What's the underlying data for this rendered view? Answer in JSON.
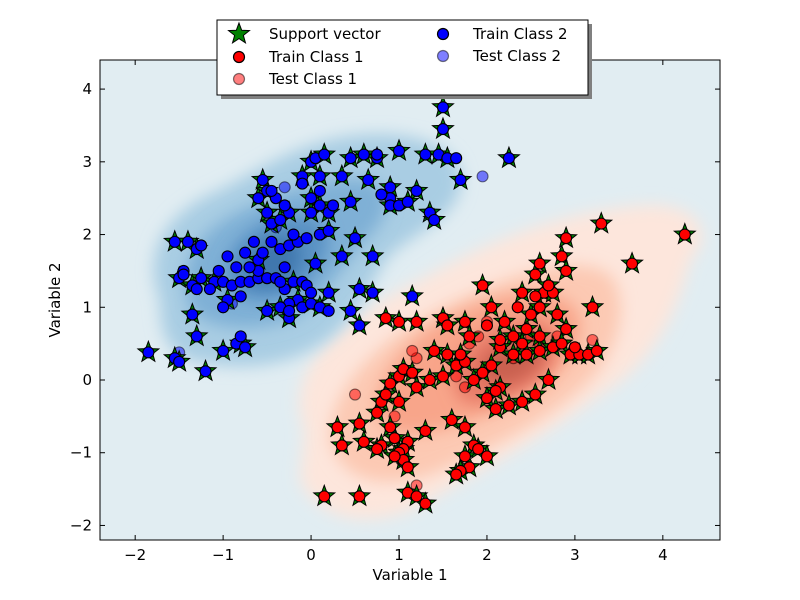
{
  "chart_data": {
    "type": "scatter",
    "xlabel": "Variable 1",
    "ylabel": "Variable 2",
    "xlim": [
      -2.4,
      4.65
    ],
    "ylim": [
      -2.2,
      4.4
    ],
    "xticks": [
      -2,
      -1,
      0,
      1,
      2,
      3,
      4
    ],
    "yticks": [
      -2,
      -1,
      0,
      1,
      2,
      3,
      4
    ],
    "xtick_labels": [
      "−2",
      "−1",
      "0",
      "1",
      "2",
      "3",
      "4"
    ],
    "ytick_labels": [
      "−2",
      "−1",
      "0",
      "1",
      "2",
      "3",
      "4"
    ],
    "grid": false,
    "legend": {
      "placement": "top-center",
      "columns": 2,
      "entries": [
        {
          "label": "Support vector",
          "marker": "star",
          "color": "#008000"
        },
        {
          "label": "Train Class 1",
          "marker": "circle",
          "color": "#ff0000"
        },
        {
          "label": "Test Class 1",
          "marker": "circle",
          "color": "#f07070"
        },
        {
          "label": "Train Class 2",
          "marker": "circle",
          "color": "#0000ff"
        },
        {
          "label": "Test Class 2",
          "marker": "circle",
          "color": "#7070e8"
        }
      ]
    },
    "colors": {
      "background": "#e1edf2",
      "train_class_1": "#ff0000",
      "test_class_1": "#f07070",
      "train_class_2": "#0000ff",
      "test_class_2": "#7070e8",
      "support_vector": "#008000",
      "density_class_1": [
        "#fde6dc",
        "#fcc9b3",
        "#f8a58a",
        "#e87d69",
        "#c9604f"
      ],
      "density_class_2": [
        "#a9cde3",
        "#7fb0d6",
        "#5a92c4",
        "#3f77ad"
      ]
    },
    "train_class_1": [
      [
        0.85,
        0.85
      ],
      [
        1.0,
        0.8
      ],
      [
        1.2,
        0.8
      ],
      [
        1.5,
        0.85
      ],
      [
        1.75,
        0.8
      ],
      [
        2.0,
        0.75
      ],
      [
        2.05,
        1.0
      ],
      [
        2.2,
        0.8
      ],
      [
        2.3,
        0.6
      ],
      [
        2.45,
        0.7
      ],
      [
        2.5,
        0.9
      ],
      [
        2.6,
        1.0
      ],
      [
        2.65,
        1.2
      ],
      [
        2.55,
        1.15
      ],
      [
        2.4,
        1.2
      ],
      [
        2.75,
        1.2
      ],
      [
        2.8,
        0.9
      ],
      [
        2.9,
        0.7
      ],
      [
        2.85,
        1.7
      ],
      [
        2.9,
        1.5
      ],
      [
        3.2,
        1.0
      ],
      [
        1.95,
        1.3
      ],
      [
        2.35,
        1.0
      ],
      [
        2.6,
        0.6
      ],
      [
        2.15,
        0.45
      ],
      [
        2.3,
        0.35
      ],
      [
        2.45,
        0.35
      ],
      [
        2.6,
        0.4
      ],
      [
        2.75,
        0.45
      ],
      [
        2.85,
        0.5
      ],
      [
        2.95,
        0.35
      ],
      [
        3.05,
        0.35
      ],
      [
        3.15,
        0.35
      ],
      [
        3.25,
        0.4
      ],
      [
        3.0,
        0.45
      ],
      [
        0.3,
        -0.65
      ],
      [
        0.35,
        -0.9
      ],
      [
        0.55,
        -0.6
      ],
      [
        0.6,
        -0.85
      ],
      [
        0.75,
        -0.45
      ],
      [
        0.8,
        -0.3
      ],
      [
        0.85,
        -0.2
      ],
      [
        0.9,
        -0.05
      ],
      [
        1.0,
        0.05
      ],
      [
        1.05,
        0.15
      ],
      [
        1.15,
        0.1
      ],
      [
        1.2,
        -0.1
      ],
      [
        1.35,
        0.0
      ],
      [
        1.5,
        0.05
      ],
      [
        1.65,
        0.2
      ],
      [
        1.75,
        0.25
      ],
      [
        1.85,
        0.0
      ],
      [
        1.95,
        0.1
      ],
      [
        2.05,
        0.2
      ],
      [
        2.15,
        -0.1
      ],
      [
        2.25,
        -0.35
      ],
      [
        2.4,
        -0.3
      ],
      [
        2.55,
        -0.2
      ],
      [
        2.7,
        0.0
      ],
      [
        1.6,
        -0.55
      ],
      [
        1.75,
        -0.65
      ],
      [
        1.85,
        -0.9
      ],
      [
        1.9,
        -0.95
      ],
      [
        2.0,
        -1.05
      ],
      [
        1.75,
        -1.05
      ],
      [
        1.8,
        -1.2
      ],
      [
        1.7,
        -1.25
      ],
      [
        1.65,
        -1.3
      ],
      [
        1.3,
        -0.7
      ],
      [
        1.1,
        -0.85
      ],
      [
        1.05,
        -0.95
      ],
      [
        0.95,
        -0.8
      ],
      [
        0.9,
        -0.65
      ],
      [
        0.8,
        -0.9
      ],
      [
        0.75,
        -0.95
      ],
      [
        1.0,
        -1.0
      ],
      [
        1.05,
        -1.1
      ],
      [
        1.1,
        -1.2
      ],
      [
        0.95,
        -1.05
      ],
      [
        0.15,
        -1.6
      ],
      [
        0.55,
        -1.6
      ],
      [
        1.1,
        -1.55
      ],
      [
        1.2,
        -1.6
      ],
      [
        1.3,
        -1.7
      ],
      [
        2.6,
        1.6
      ],
      [
        2.7,
        1.3
      ],
      [
        2.55,
        1.45
      ],
      [
        3.65,
        1.6
      ],
      [
        3.3,
        2.15
      ],
      [
        4.25,
        2.0
      ],
      [
        2.0,
        -0.25
      ],
      [
        2.1,
        -0.4
      ],
      [
        2.15,
        0.55
      ],
      [
        2.4,
        0.5
      ],
      [
        1.4,
        0.4
      ],
      [
        1.55,
        0.35
      ],
      [
        1.7,
        0.35
      ],
      [
        1.55,
        0.75
      ],
      [
        1.8,
        0.6
      ],
      [
        2.1,
        -0.15
      ],
      [
        1.0,
        -0.3
      ],
      [
        2.9,
        1.95
      ]
    ],
    "test_class_1": [
      [
        0.5,
        -0.2
      ],
      [
        1.2,
        0.3
      ],
      [
        1.15,
        0.4
      ],
      [
        1.8,
        0.5
      ],
      [
        2.0,
        0.8
      ],
      [
        1.9,
        0.6
      ],
      [
        2.5,
        0.6
      ],
      [
        2.6,
        0.5
      ],
      [
        2.8,
        0.6
      ],
      [
        3.2,
        0.55
      ],
      [
        0.95,
        -0.5
      ],
      [
        1.2,
        -1.45
      ],
      [
        1.65,
        0.05
      ],
      [
        1.75,
        -0.1
      ],
      [
        2.3,
        0.3
      ]
    ],
    "train_class_2": [
      [
        -1.85,
        0.38
      ],
      [
        -1.55,
        0.3
      ],
      [
        -1.5,
        0.25
      ],
      [
        -1.2,
        0.12
      ],
      [
        -1.3,
        0.6
      ],
      [
        -1.35,
        0.9
      ],
      [
        -1.5,
        1.4
      ],
      [
        -1.45,
        1.5
      ],
      [
        -1.35,
        1.3
      ],
      [
        -1.25,
        1.4
      ],
      [
        -1.3,
        1.8
      ],
      [
        -1.4,
        1.9
      ],
      [
        -1.55,
        1.9
      ],
      [
        -1.25,
        1.85
      ],
      [
        -1.1,
        1.35
      ],
      [
        -1.0,
        1.35
      ],
      [
        -0.95,
        1.1
      ],
      [
        -0.9,
        1.3
      ],
      [
        -0.8,
        1.35
      ],
      [
        -0.7,
        1.35
      ],
      [
        -0.6,
        1.4
      ],
      [
        -0.5,
        1.4
      ],
      [
        -0.4,
        1.4
      ],
      [
        -0.3,
        1.25
      ],
      [
        -0.2,
        1.35
      ],
      [
        -0.1,
        1.35
      ],
      [
        0.05,
        1.6
      ],
      [
        -0.15,
        1.1
      ],
      [
        -0.25,
        1.05
      ],
      [
        -0.35,
        1.0
      ],
      [
        -0.5,
        0.95
      ],
      [
        -0.25,
        0.85
      ],
      [
        -0.1,
        1.0
      ],
      [
        0.0,
        1.05
      ],
      [
        0.1,
        1.0
      ],
      [
        0.2,
        1.2
      ],
      [
        -1.0,
        0.4
      ],
      [
        -0.85,
        0.5
      ],
      [
        -0.75,
        0.45
      ],
      [
        -0.8,
        0.6
      ],
      [
        -0.6,
        1.65
      ],
      [
        -0.55,
        1.75
      ],
      [
        -0.65,
        1.9
      ],
      [
        -0.45,
        1.9
      ],
      [
        -0.35,
        1.8
      ],
      [
        -0.25,
        1.85
      ],
      [
        -0.15,
        1.9
      ],
      [
        -0.05,
        1.95
      ],
      [
        0.1,
        2.0
      ],
      [
        -0.45,
        2.15
      ],
      [
        -0.35,
        2.2
      ],
      [
        -0.25,
        2.3
      ],
      [
        -0.5,
        2.3
      ],
      [
        -0.6,
        2.5
      ],
      [
        -0.5,
        2.6
      ],
      [
        -0.4,
        2.5
      ],
      [
        -0.3,
        2.4
      ],
      [
        -0.2,
        2.0
      ],
      [
        0.0,
        2.3
      ],
      [
        0.1,
        2.4
      ],
      [
        0.2,
        2.3
      ],
      [
        0.25,
        2.4
      ],
      [
        0.0,
        2.5
      ],
      [
        0.1,
        2.6
      ],
      [
        -0.6,
        1.5
      ],
      [
        -0.7,
        1.55
      ],
      [
        -0.85,
        1.55
      ],
      [
        -0.95,
        1.7
      ],
      [
        -0.75,
        1.75
      ],
      [
        -0.3,
        1.55
      ],
      [
        0.2,
        2.05
      ],
      [
        0.35,
        1.7
      ],
      [
        0.5,
        1.95
      ],
      [
        0.7,
        1.7
      ],
      [
        -0.1,
        2.8
      ],
      [
        0.0,
        3.0
      ],
      [
        0.05,
        3.05
      ],
      [
        0.15,
        3.1
      ],
      [
        0.1,
        2.8
      ],
      [
        -0.55,
        2.75
      ],
      [
        -0.45,
        2.6
      ],
      [
        0.45,
        3.05
      ],
      [
        0.6,
        3.1
      ],
      [
        0.75,
        3.05
      ],
      [
        0.75,
        3.1
      ],
      [
        0.65,
        2.75
      ],
      [
        0.9,
        2.65
      ],
      [
        1.0,
        3.15
      ],
      [
        1.3,
        3.1
      ],
      [
        1.45,
        3.1
      ],
      [
        1.55,
        3.05
      ],
      [
        1.65,
        3.05
      ],
      [
        1.7,
        2.75
      ],
      [
        1.2,
        2.6
      ],
      [
        0.9,
        2.5
      ],
      [
        0.9,
        2.4
      ],
      [
        1.0,
        2.4
      ],
      [
        1.1,
        2.45
      ],
      [
        1.35,
        2.3
      ],
      [
        1.4,
        2.2
      ],
      [
        0.45,
        2.45
      ],
      [
        0.35,
        2.8
      ],
      [
        0.55,
        0.75
      ],
      [
        0.55,
        1.25
      ],
      [
        0.7,
        1.2
      ],
      [
        0.45,
        0.95
      ],
      [
        0.2,
        0.95
      ],
      [
        -0.25,
        0.95
      ],
      [
        -1.3,
        1.25
      ],
      [
        -1.15,
        1.25
      ],
      [
        -1.05,
        1.5
      ],
      [
        -1.45,
        1.45
      ],
      [
        1.15,
        1.15
      ],
      [
        1.5,
        3.75
      ],
      [
        1.5,
        3.45
      ],
      [
        2.25,
        3.05
      ],
      [
        0.8,
        2.55
      ],
      [
        -0.1,
        2.7
      ],
      [
        -0.05,
        1.3
      ],
      [
        -0.35,
        1.35
      ],
      [
        -1.0,
        1.0
      ],
      [
        -0.8,
        1.15
      ],
      [
        0.0,
        1.2
      ]
    ],
    "test_class_2": [
      [
        -1.5,
        0.38
      ],
      [
        -0.3,
        2.65
      ],
      [
        1.95,
        2.8
      ],
      [
        -0.4,
        2.1
      ],
      [
        -0.9,
        1.05
      ]
    ],
    "support_vectors": [
      [
        -1.85,
        0.38
      ],
      [
        -1.55,
        0.3
      ],
      [
        -1.5,
        0.25
      ],
      [
        -1.2,
        0.12
      ],
      [
        -1.0,
        0.4
      ],
      [
        -0.8,
        0.5
      ],
      [
        -0.75,
        0.45
      ],
      [
        -1.3,
        0.6
      ],
      [
        -1.35,
        0.9
      ],
      [
        -1.55,
        1.9
      ],
      [
        -1.4,
        1.9
      ],
      [
        -1.5,
        1.4
      ],
      [
        -1.35,
        1.3
      ],
      [
        -1.25,
        1.4
      ],
      [
        -1.3,
        1.8
      ],
      [
        -1.1,
        1.35
      ],
      [
        -0.95,
        1.1
      ],
      [
        -0.6,
        1.65
      ],
      [
        -0.6,
        2.5
      ],
      [
        -0.5,
        2.6
      ],
      [
        -0.55,
        2.75
      ],
      [
        -0.5,
        2.3
      ],
      [
        -0.45,
        2.15
      ],
      [
        -0.35,
        2.2
      ],
      [
        -0.25,
        2.3
      ],
      [
        -0.1,
        2.8
      ],
      [
        0.0,
        3.0
      ],
      [
        0.1,
        2.8
      ],
      [
        0.15,
        3.1
      ],
      [
        0.45,
        3.05
      ],
      [
        0.6,
        3.1
      ],
      [
        0.75,
        3.05
      ],
      [
        0.65,
        2.75
      ],
      [
        1.0,
        3.15
      ],
      [
        1.3,
        3.1
      ],
      [
        1.45,
        3.1
      ],
      [
        1.55,
        3.05
      ],
      [
        1.7,
        2.75
      ],
      [
        0.9,
        2.65
      ],
      [
        0.9,
        2.4
      ],
      [
        1.1,
        2.45
      ],
      [
        1.2,
        2.6
      ],
      [
        1.35,
        2.3
      ],
      [
        1.4,
        2.2
      ],
      [
        0.45,
        2.45
      ],
      [
        0.35,
        2.8
      ],
      [
        0.5,
        1.95
      ],
      [
        0.7,
        1.7
      ],
      [
        0.35,
        1.7
      ],
      [
        0.55,
        1.25
      ],
      [
        0.7,
        1.2
      ],
      [
        0.55,
        0.75
      ],
      [
        0.45,
        0.95
      ],
      [
        1.15,
        1.15
      ],
      [
        1.5,
        3.75
      ],
      [
        1.5,
        3.45
      ],
      [
        2.25,
        3.05
      ],
      [
        -0.5,
        0.95
      ],
      [
        -0.35,
        1.0
      ],
      [
        -0.25,
        0.85
      ],
      [
        -0.15,
        1.1
      ],
      [
        0.2,
        1.2
      ],
      [
        0.0,
        1.05
      ],
      [
        0.1,
        1.0
      ],
      [
        0.05,
        1.6
      ],
      [
        -0.2,
        1.35
      ],
      [
        0.2,
        2.05
      ],
      [
        0.0,
        2.3
      ],
      [
        0.1,
        2.4
      ],
      [
        0.2,
        2.3
      ],
      [
        0.0,
        2.5
      ],
      [
        0.85,
        0.85
      ],
      [
        1.0,
        0.8
      ],
      [
        1.2,
        0.8
      ],
      [
        1.5,
        0.85
      ],
      [
        1.75,
        0.8
      ],
      [
        1.95,
        1.3
      ],
      [
        2.05,
        1.0
      ],
      [
        2.2,
        0.8
      ],
      [
        2.3,
        0.6
      ],
      [
        2.45,
        0.7
      ],
      [
        2.5,
        0.9
      ],
      [
        2.6,
        1.0
      ],
      [
        2.4,
        1.2
      ],
      [
        2.65,
        1.2
      ],
      [
        2.75,
        1.2
      ],
      [
        2.8,
        0.9
      ],
      [
        2.9,
        0.7
      ],
      [
        2.85,
        1.7
      ],
      [
        2.9,
        1.5
      ],
      [
        3.2,
        1.0
      ],
      [
        3.65,
        1.6
      ],
      [
        3.3,
        2.15
      ],
      [
        4.25,
        2.0
      ],
      [
        2.9,
        1.95
      ],
      [
        2.6,
        1.6
      ],
      [
        2.55,
        1.45
      ],
      [
        2.7,
        1.3
      ],
      [
        2.15,
        0.55
      ],
      [
        2.4,
        0.5
      ],
      [
        2.6,
        0.6
      ],
      [
        2.15,
        0.45
      ],
      [
        2.3,
        0.35
      ],
      [
        2.45,
        0.35
      ],
      [
        2.6,
        0.4
      ],
      [
        2.75,
        0.45
      ],
      [
        2.85,
        0.5
      ],
      [
        2.95,
        0.35
      ],
      [
        3.05,
        0.35
      ],
      [
        3.15,
        0.35
      ],
      [
        3.25,
        0.4
      ],
      [
        0.3,
        -0.65
      ],
      [
        0.35,
        -0.9
      ],
      [
        0.55,
        -0.6
      ],
      [
        0.6,
        -0.85
      ],
      [
        0.75,
        -0.45
      ],
      [
        0.8,
        -0.3
      ],
      [
        0.85,
        -0.2
      ],
      [
        0.9,
        -0.05
      ],
      [
        1.0,
        0.05
      ],
      [
        1.05,
        0.15
      ],
      [
        1.15,
        0.1
      ],
      [
        1.2,
        -0.1
      ],
      [
        1.35,
        0.0
      ],
      [
        1.5,
        0.05
      ],
      [
        1.65,
        0.2
      ],
      [
        1.75,
        0.25
      ],
      [
        1.85,
        0.0
      ],
      [
        1.95,
        0.1
      ],
      [
        2.05,
        0.2
      ],
      [
        2.15,
        -0.1
      ],
      [
        2.25,
        -0.35
      ],
      [
        2.4,
        -0.3
      ],
      [
        2.55,
        -0.2
      ],
      [
        2.7,
        0.0
      ],
      [
        1.6,
        -0.55
      ],
      [
        1.75,
        -0.65
      ],
      [
        1.85,
        -0.9
      ],
      [
        1.9,
        -0.95
      ],
      [
        2.0,
        -1.05
      ],
      [
        1.75,
        -1.05
      ],
      [
        1.8,
        -1.2
      ],
      [
        1.7,
        -1.25
      ],
      [
        1.65,
        -1.3
      ],
      [
        1.3,
        -0.7
      ],
      [
        1.1,
        -0.85
      ],
      [
        1.05,
        -0.95
      ],
      [
        0.95,
        -0.8
      ],
      [
        0.9,
        -0.65
      ],
      [
        0.8,
        -0.9
      ],
      [
        0.75,
        -0.95
      ],
      [
        1.0,
        -1.0
      ],
      [
        1.05,
        -1.1
      ],
      [
        1.1,
        -1.2
      ],
      [
        0.95,
        -1.05
      ],
      [
        0.15,
        -1.6
      ],
      [
        0.55,
        -1.6
      ],
      [
        1.1,
        -1.55
      ],
      [
        1.2,
        -1.6
      ],
      [
        1.3,
        -1.7
      ],
      [
        1.4,
        0.4
      ],
      [
        1.55,
        0.35
      ],
      [
        1.7,
        0.35
      ],
      [
        1.55,
        0.75
      ],
      [
        1.8,
        0.6
      ],
      [
        2.1,
        -0.15
      ],
      [
        1.0,
        -0.3
      ],
      [
        2.0,
        -0.25
      ],
      [
        2.1,
        -0.4
      ]
    ]
  }
}
